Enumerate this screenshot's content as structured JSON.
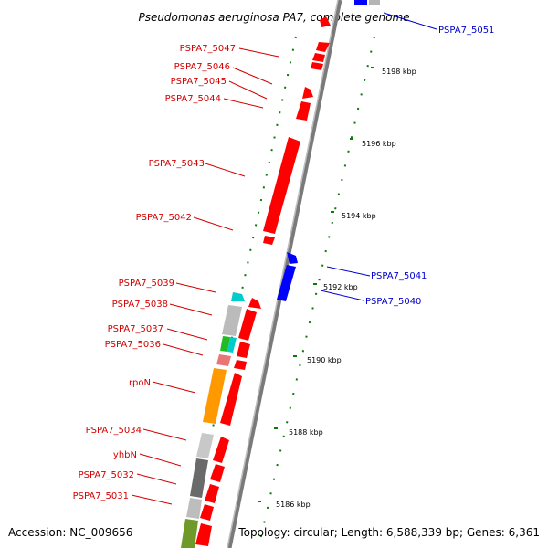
{
  "title": "Pseudomonas aeruginosa PA7, complete genome",
  "footer": {
    "accession": "Accession: NC_009656",
    "topology": "Topology: circular; Length: 6,588,339 bp; Genes: 6,361"
  },
  "colors": {
    "forward_gene": "#ff0000",
    "reverse_gene": "#0000ff",
    "backbone": "#888888",
    "gc_tick": "#008000",
    "label_forward": "#d40000",
    "label_reverse": "#0000cc"
  },
  "scale_labels": [
    "5198 kbp",
    "5196 kbp",
    "5194 kbp",
    "5192 kbp",
    "5190 kbp",
    "5188 kbp",
    "5186 kbp"
  ],
  "gene_labels_left": [
    "PSPA7_5047",
    "PSPA7_5046",
    "PSPA7_5045",
    "PSPA7_5044",
    "PSPA7_5043",
    "PSPA7_5042",
    "PSPA7_5039",
    "PSPA7_5038",
    "PSPA7_5037",
    "PSPA7_5036",
    "rpoN",
    "PSPA7_5034",
    "yhbN",
    "PSPA7_5032",
    "PSPA7_5031"
  ],
  "gene_labels_right": [
    "PSPA7_5051",
    "PSPA7_5041",
    "PSPA7_5040"
  ]
}
